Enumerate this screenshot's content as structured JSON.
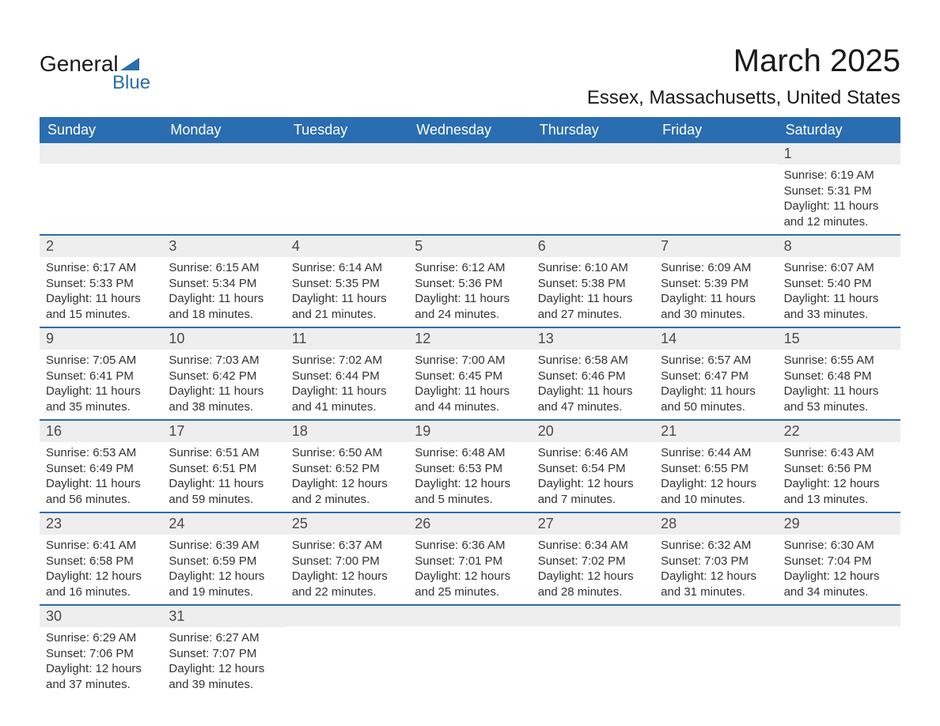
{
  "logo": {
    "top": "General",
    "bottom": "Blue"
  },
  "title": "March 2025",
  "location": "Essex, Massachusetts, United States",
  "calendar": {
    "type": "table",
    "header_bg": "#2a6db0",
    "header_fg": "#ffffff",
    "daynum_bg": "#eeeeee",
    "border_color": "#2a6db0",
    "text_color": "#333333",
    "title_fontsize": 40,
    "location_fontsize": 24,
    "header_fontsize": 18,
    "daynum_fontsize": 18,
    "body_fontsize": 15
  },
  "days": [
    "Sunday",
    "Monday",
    "Tuesday",
    "Wednesday",
    "Thursday",
    "Friday",
    "Saturday"
  ],
  "weeks": [
    [
      null,
      null,
      null,
      null,
      null,
      null,
      {
        "n": "1",
        "sr": "Sunrise: 6:19 AM",
        "ss": "Sunset: 5:31 PM",
        "dl": "Daylight: 11 hours and 12 minutes."
      }
    ],
    [
      {
        "n": "2",
        "sr": "Sunrise: 6:17 AM",
        "ss": "Sunset: 5:33 PM",
        "dl": "Daylight: 11 hours and 15 minutes."
      },
      {
        "n": "3",
        "sr": "Sunrise: 6:15 AM",
        "ss": "Sunset: 5:34 PM",
        "dl": "Daylight: 11 hours and 18 minutes."
      },
      {
        "n": "4",
        "sr": "Sunrise: 6:14 AM",
        "ss": "Sunset: 5:35 PM",
        "dl": "Daylight: 11 hours and 21 minutes."
      },
      {
        "n": "5",
        "sr": "Sunrise: 6:12 AM",
        "ss": "Sunset: 5:36 PM",
        "dl": "Daylight: 11 hours and 24 minutes."
      },
      {
        "n": "6",
        "sr": "Sunrise: 6:10 AM",
        "ss": "Sunset: 5:38 PM",
        "dl": "Daylight: 11 hours and 27 minutes."
      },
      {
        "n": "7",
        "sr": "Sunrise: 6:09 AM",
        "ss": "Sunset: 5:39 PM",
        "dl": "Daylight: 11 hours and 30 minutes."
      },
      {
        "n": "8",
        "sr": "Sunrise: 6:07 AM",
        "ss": "Sunset: 5:40 PM",
        "dl": "Daylight: 11 hours and 33 minutes."
      }
    ],
    [
      {
        "n": "9",
        "sr": "Sunrise: 7:05 AM",
        "ss": "Sunset: 6:41 PM",
        "dl": "Daylight: 11 hours and 35 minutes."
      },
      {
        "n": "10",
        "sr": "Sunrise: 7:03 AM",
        "ss": "Sunset: 6:42 PM",
        "dl": "Daylight: 11 hours and 38 minutes."
      },
      {
        "n": "11",
        "sr": "Sunrise: 7:02 AM",
        "ss": "Sunset: 6:44 PM",
        "dl": "Daylight: 11 hours and 41 minutes."
      },
      {
        "n": "12",
        "sr": "Sunrise: 7:00 AM",
        "ss": "Sunset: 6:45 PM",
        "dl": "Daylight: 11 hours and 44 minutes."
      },
      {
        "n": "13",
        "sr": "Sunrise: 6:58 AM",
        "ss": "Sunset: 6:46 PM",
        "dl": "Daylight: 11 hours and 47 minutes."
      },
      {
        "n": "14",
        "sr": "Sunrise: 6:57 AM",
        "ss": "Sunset: 6:47 PM",
        "dl": "Daylight: 11 hours and 50 minutes."
      },
      {
        "n": "15",
        "sr": "Sunrise: 6:55 AM",
        "ss": "Sunset: 6:48 PM",
        "dl": "Daylight: 11 hours and 53 minutes."
      }
    ],
    [
      {
        "n": "16",
        "sr": "Sunrise: 6:53 AM",
        "ss": "Sunset: 6:49 PM",
        "dl": "Daylight: 11 hours and 56 minutes."
      },
      {
        "n": "17",
        "sr": "Sunrise: 6:51 AM",
        "ss": "Sunset: 6:51 PM",
        "dl": "Daylight: 11 hours and 59 minutes."
      },
      {
        "n": "18",
        "sr": "Sunrise: 6:50 AM",
        "ss": "Sunset: 6:52 PM",
        "dl": "Daylight: 12 hours and 2 minutes."
      },
      {
        "n": "19",
        "sr": "Sunrise: 6:48 AM",
        "ss": "Sunset: 6:53 PM",
        "dl": "Daylight: 12 hours and 5 minutes."
      },
      {
        "n": "20",
        "sr": "Sunrise: 6:46 AM",
        "ss": "Sunset: 6:54 PM",
        "dl": "Daylight: 12 hours and 7 minutes."
      },
      {
        "n": "21",
        "sr": "Sunrise: 6:44 AM",
        "ss": "Sunset: 6:55 PM",
        "dl": "Daylight: 12 hours and 10 minutes."
      },
      {
        "n": "22",
        "sr": "Sunrise: 6:43 AM",
        "ss": "Sunset: 6:56 PM",
        "dl": "Daylight: 12 hours and 13 minutes."
      }
    ],
    [
      {
        "n": "23",
        "sr": "Sunrise: 6:41 AM",
        "ss": "Sunset: 6:58 PM",
        "dl": "Daylight: 12 hours and 16 minutes."
      },
      {
        "n": "24",
        "sr": "Sunrise: 6:39 AM",
        "ss": "Sunset: 6:59 PM",
        "dl": "Daylight: 12 hours and 19 minutes."
      },
      {
        "n": "25",
        "sr": "Sunrise: 6:37 AM",
        "ss": "Sunset: 7:00 PM",
        "dl": "Daylight: 12 hours and 22 minutes."
      },
      {
        "n": "26",
        "sr": "Sunrise: 6:36 AM",
        "ss": "Sunset: 7:01 PM",
        "dl": "Daylight: 12 hours and 25 minutes."
      },
      {
        "n": "27",
        "sr": "Sunrise: 6:34 AM",
        "ss": "Sunset: 7:02 PM",
        "dl": "Daylight: 12 hours and 28 minutes."
      },
      {
        "n": "28",
        "sr": "Sunrise: 6:32 AM",
        "ss": "Sunset: 7:03 PM",
        "dl": "Daylight: 12 hours and 31 minutes."
      },
      {
        "n": "29",
        "sr": "Sunrise: 6:30 AM",
        "ss": "Sunset: 7:04 PM",
        "dl": "Daylight: 12 hours and 34 minutes."
      }
    ],
    [
      {
        "n": "30",
        "sr": "Sunrise: 6:29 AM",
        "ss": "Sunset: 7:06 PM",
        "dl": "Daylight: 12 hours and 37 minutes."
      },
      {
        "n": "31",
        "sr": "Sunrise: 6:27 AM",
        "ss": "Sunset: 7:07 PM",
        "dl": "Daylight: 12 hours and 39 minutes."
      },
      null,
      null,
      null,
      null,
      null
    ]
  ]
}
